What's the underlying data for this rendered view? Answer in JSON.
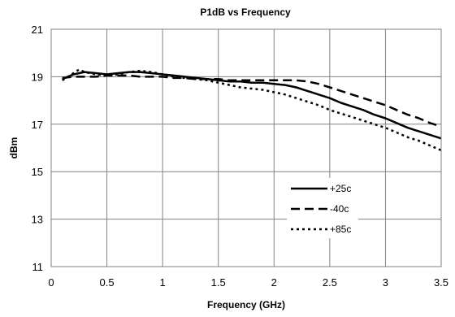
{
  "chart_data": {
    "type": "line",
    "title": "P1dB vs Frequency",
    "xlabel": "Frequency (GHz)",
    "ylabel": "dBm",
    "xlim": [
      0,
      3.5
    ],
    "ylim": [
      11,
      21
    ],
    "x_ticks": [
      "0",
      "0.5",
      "1",
      "1.5",
      "2",
      "2.5",
      "3",
      "3.5"
    ],
    "y_ticks": [
      "11",
      "13",
      "15",
      "17",
      "19",
      "21"
    ],
    "grid": true,
    "legend_position": "bottom-right",
    "series": [
      {
        "name": "+25c",
        "style": "solid",
        "color": "#000000",
        "points": [
          [
            0.1,
            18.9
          ],
          [
            0.2,
            19.1
          ],
          [
            0.3,
            19.2
          ],
          [
            0.4,
            19.15
          ],
          [
            0.5,
            19.1
          ],
          [
            0.6,
            19.15
          ],
          [
            0.7,
            19.2
          ],
          [
            0.8,
            19.2
          ],
          [
            0.9,
            19.15
          ],
          [
            1.0,
            19.1
          ],
          [
            1.1,
            19.05
          ],
          [
            1.2,
            19.0
          ],
          [
            1.3,
            18.95
          ],
          [
            1.4,
            18.9
          ],
          [
            1.5,
            18.85
          ],
          [
            1.6,
            18.8
          ],
          [
            1.7,
            18.8
          ],
          [
            1.8,
            18.75
          ],
          [
            1.9,
            18.75
          ],
          [
            2.0,
            18.7
          ],
          [
            2.1,
            18.65
          ],
          [
            2.2,
            18.55
          ],
          [
            2.3,
            18.4
          ],
          [
            2.4,
            18.25
          ],
          [
            2.5,
            18.1
          ],
          [
            2.6,
            17.9
          ],
          [
            2.7,
            17.75
          ],
          [
            2.8,
            17.6
          ],
          [
            2.9,
            17.4
          ],
          [
            3.0,
            17.25
          ],
          [
            3.1,
            17.05
          ],
          [
            3.2,
            16.85
          ],
          [
            3.3,
            16.7
          ],
          [
            3.4,
            16.55
          ],
          [
            3.5,
            16.4
          ]
        ]
      },
      {
        "name": "-40c",
        "style": "dashed",
        "color": "#000000",
        "points": [
          [
            0.1,
            18.95
          ],
          [
            0.2,
            19.0
          ],
          [
            0.3,
            19.0
          ],
          [
            0.4,
            19.0
          ],
          [
            0.5,
            19.05
          ],
          [
            0.6,
            19.05
          ],
          [
            0.7,
            19.05
          ],
          [
            0.8,
            19.0
          ],
          [
            0.9,
            19.0
          ],
          [
            1.0,
            19.0
          ],
          [
            1.1,
            18.95
          ],
          [
            1.2,
            18.95
          ],
          [
            1.3,
            18.9
          ],
          [
            1.4,
            18.9
          ],
          [
            1.5,
            18.9
          ],
          [
            1.6,
            18.85
          ],
          [
            1.7,
            18.85
          ],
          [
            1.8,
            18.85
          ],
          [
            1.9,
            18.85
          ],
          [
            2.0,
            18.85
          ],
          [
            2.1,
            18.85
          ],
          [
            2.2,
            18.85
          ],
          [
            2.3,
            18.8
          ],
          [
            2.4,
            18.7
          ],
          [
            2.5,
            18.55
          ],
          [
            2.6,
            18.4
          ],
          [
            2.7,
            18.25
          ],
          [
            2.8,
            18.1
          ],
          [
            2.9,
            17.95
          ],
          [
            3.0,
            17.8
          ],
          [
            3.1,
            17.6
          ],
          [
            3.2,
            17.4
          ],
          [
            3.3,
            17.25
          ],
          [
            3.4,
            17.05
          ],
          [
            3.5,
            16.9
          ]
        ]
      },
      {
        "name": "+85c",
        "style": "dotted",
        "color": "#000000",
        "points": [
          [
            0.1,
            18.85
          ],
          [
            0.2,
            19.15
          ],
          [
            0.25,
            19.3
          ],
          [
            0.3,
            19.2
          ],
          [
            0.4,
            19.1
          ],
          [
            0.5,
            19.05
          ],
          [
            0.6,
            19.1
          ],
          [
            0.7,
            19.2
          ],
          [
            0.8,
            19.25
          ],
          [
            0.9,
            19.2
          ],
          [
            1.0,
            19.1
          ],
          [
            1.1,
            19.0
          ],
          [
            1.2,
            18.95
          ],
          [
            1.3,
            18.9
          ],
          [
            1.4,
            18.85
          ],
          [
            1.5,
            18.75
          ],
          [
            1.6,
            18.65
          ],
          [
            1.7,
            18.55
          ],
          [
            1.8,
            18.5
          ],
          [
            1.9,
            18.45
          ],
          [
            2.0,
            18.35
          ],
          [
            2.1,
            18.25
          ],
          [
            2.2,
            18.1
          ],
          [
            2.3,
            17.95
          ],
          [
            2.4,
            17.8
          ],
          [
            2.5,
            17.6
          ],
          [
            2.6,
            17.45
          ],
          [
            2.7,
            17.3
          ],
          [
            2.8,
            17.15
          ],
          [
            2.9,
            17.0
          ],
          [
            3.0,
            16.85
          ],
          [
            3.1,
            16.65
          ],
          [
            3.2,
            16.45
          ],
          [
            3.3,
            16.3
          ],
          [
            3.4,
            16.1
          ],
          [
            3.5,
            15.9
          ]
        ]
      }
    ]
  }
}
